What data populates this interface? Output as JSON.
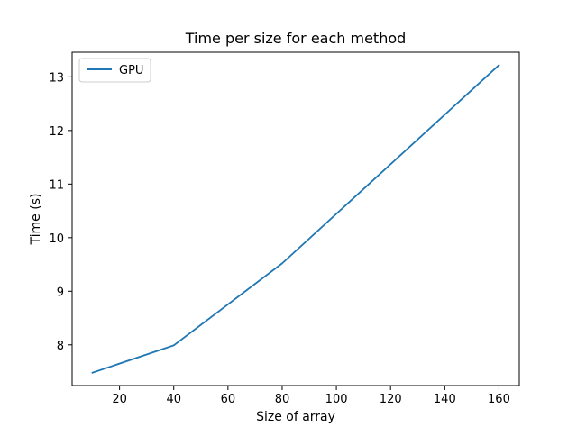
{
  "chart_data": {
    "type": "line",
    "title": "Time per size for each method",
    "xlabel": "Size of array",
    "ylabel": "Time (s)",
    "xlim": [
      2.5,
      167.5
    ],
    "ylim": [
      7.24,
      13.46
    ],
    "xticks": [
      20,
      40,
      60,
      80,
      100,
      120,
      140,
      160
    ],
    "yticks": [
      8,
      9,
      10,
      11,
      12,
      13
    ],
    "grid": false,
    "legend_position": "upper-left",
    "series": [
      {
        "name": "GPU",
        "color": "#1f77b4",
        "x": [
          10,
          40,
          80,
          160
        ],
        "y": [
          7.48,
          7.99,
          9.52,
          13.22
        ]
      }
    ]
  }
}
